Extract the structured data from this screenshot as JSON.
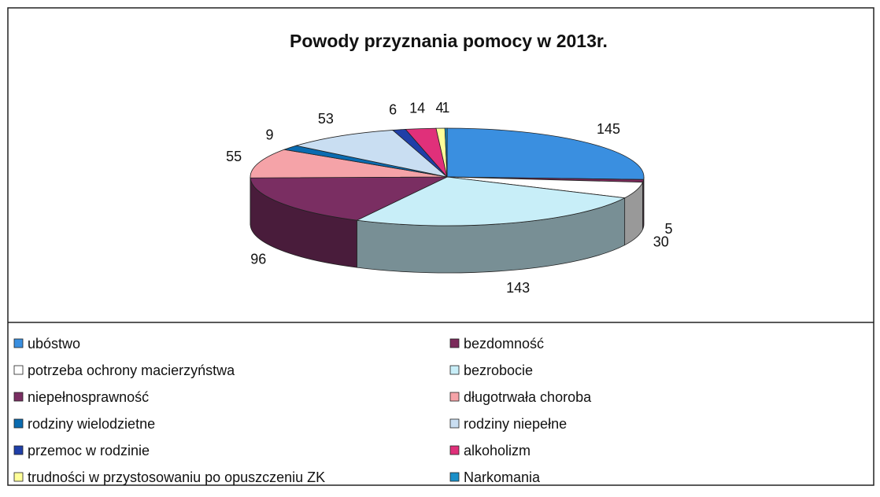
{
  "chart_data": {
    "type": "pie",
    "title": "Powody przyznania pomocy w 2013r.",
    "categories": [
      "ubóstwo",
      "bezdomność",
      "potrzeba ochrony macierzyństwa",
      "bezrobocie",
      "niepełnosprawność",
      "długotrwała choroba",
      "rodziny wielodzietne",
      "rodziny niepełne",
      "przemoc w rodzinie",
      "alkoholizm",
      "trudności w przystosowaniu po opuszczeniu ZK",
      "Narkomania"
    ],
    "values": [
      145,
      5,
      30,
      143,
      96,
      55,
      9,
      53,
      6,
      14,
      4,
      1
    ],
    "colors": [
      "#3a8fe0",
      "#7b2a5a",
      "#ffffff",
      "#c8eef8",
      "#7a2e62",
      "#f5a3a8",
      "#0a6bb0",
      "#c9def2",
      "#1f3fa8",
      "#e0307a",
      "#ffff99",
      "#1a8fc8"
    ],
    "legend": "bottom"
  }
}
